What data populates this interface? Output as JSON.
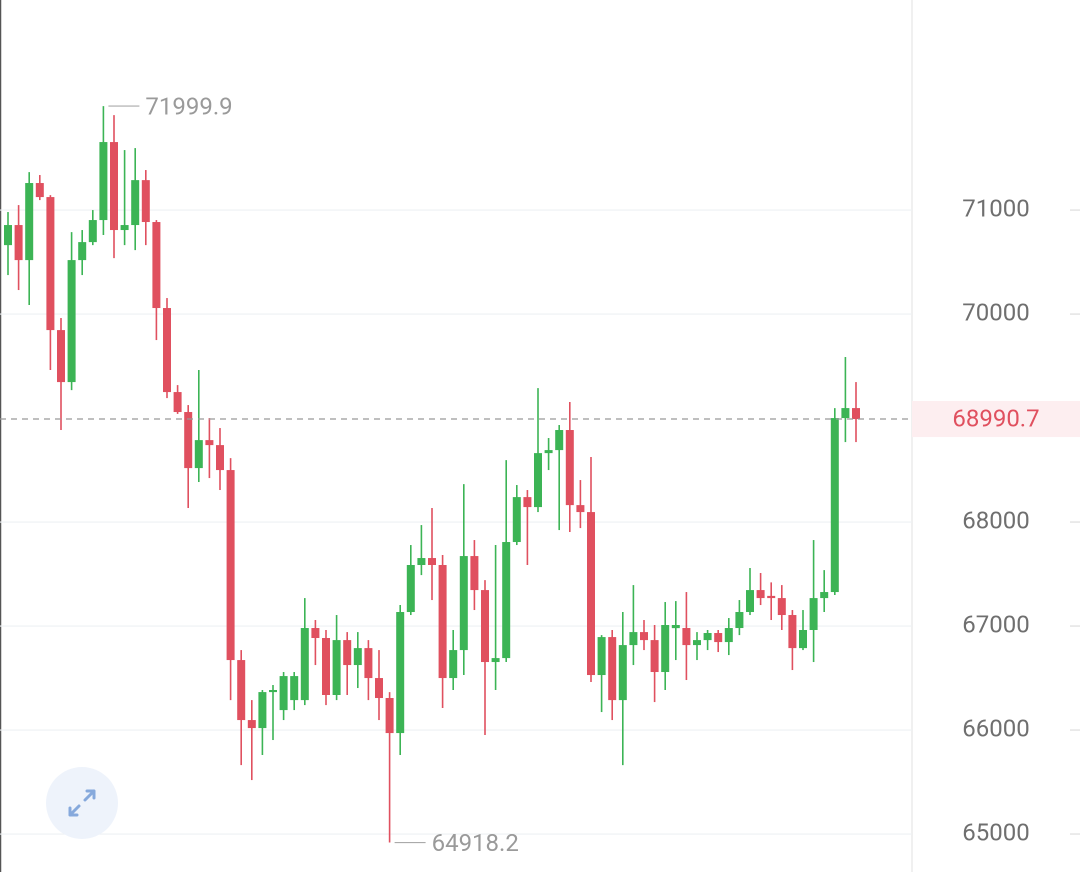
{
  "chart_data": {
    "type": "candlestick",
    "ylim": [
      64635,
      73020
    ],
    "yticks": [
      65000,
      66000,
      67000,
      68000,
      70000,
      71000
    ],
    "grid": true,
    "up_color": "#3cb455",
    "down_color": "#e0505f",
    "open": [
      70663,
      70856,
      70519,
      71260,
      71125,
      69846,
      69346,
      70519,
      70692,
      70904,
      71654,
      70808,
      70856,
      71288,
      70885,
      70058,
      69250,
      69058,
      68519,
      68788,
      68740,
      68500,
      66673,
      66096,
      66019,
      66365,
      66192,
      66288,
      66288,
      66981,
      66885,
      66337,
      66865,
      66625,
      66788,
      66500,
      66308,
      65971,
      67135,
      67587,
      67654,
      67587,
      66500,
      66769,
      67673,
      67346,
      66654,
      66692,
      67808,
      68240,
      68144,
      68663,
      68692,
      68885,
      68163,
      68096,
      66529,
      66894,
      66288,
      66817,
      66942,
      66865,
      66558,
      66980,
      66981,
      66817,
      66865,
      66933,
      66846,
      66981,
      67135,
      67346,
      67290,
      67269,
      67106,
      66788,
      66962,
      67269,
      67327,
      69000,
      69096
    ],
    "high": [
      70981,
      71048,
      71365,
      71337,
      71144,
      69962,
      70788,
      70808,
      71000,
      71999.9,
      71913,
      71577,
      71596,
      71385,
      70904,
      70154,
      69317,
      69125,
      69462,
      69000,
      68904,
      68615,
      66769,
      66288,
      66385,
      66433,
      66558,
      66558,
      67269,
      67058,
      66962,
      67106,
      66942,
      66942,
      66865,
      66769,
      66365,
      67202,
      67779,
      67971,
      68135,
      67683,
      66962,
      68365,
      67827,
      67442,
      67779,
      68596,
      68356,
      68308,
      69288,
      68808,
      68933,
      69154,
      68404,
      68625,
      66913,
      66962,
      67135,
      67394,
      67058,
      67010,
      67231,
      67240,
      67327,
      66942,
      66962,
      66962,
      67077,
      67250,
      67558,
      67510,
      67420,
      67394,
      67154,
      67154,
      67827,
      67538,
      69096,
      69587,
      69346
    ],
    "low": [
      70375,
      70231,
      70087,
      71096,
      69462,
      68885,
      69269,
      70375,
      70663,
      70760,
      70538,
      70663,
      70615,
      70663,
      69750,
      69192,
      69040,
      68135,
      68385,
      68423,
      68308,
      66288,
      65663,
      65519,
      65760,
      65904,
      66096,
      66192,
      66240,
      66625,
      66240,
      66288,
      66337,
      66404,
      66288,
      66096,
      64918.2,
      65760,
      67106,
      67490,
      67250,
      66212,
      66385,
      66529,
      67154,
      65952,
      66385,
      66654,
      67779,
      67587,
      68096,
      68500,
      67923,
      67904,
      67942,
      66462,
      66173,
      66096,
      65663,
      66625,
      66769,
      66269,
      66385,
      66673,
      66481,
      66673,
      66769,
      66750,
      66721,
      66913,
      67106,
      67202,
      67058,
      66962,
      66577,
      66769,
      66654,
      67135,
      67298,
      68769,
      68769
    ],
    "close": [
      70856,
      70519,
      71260,
      71125,
      69846,
      69346,
      70519,
      70692,
      70904,
      71654,
      70808,
      70856,
      71288,
      70885,
      70058,
      69250,
      69058,
      68519,
      68788,
      68740,
      68500,
      66673,
      66096,
      66019,
      66365,
      66385,
      66519,
      66519,
      66981,
      66885,
      66337,
      66865,
      66625,
      66788,
      66500,
      66308,
      65971,
      67135,
      67587,
      67654,
      67587,
      66500,
      66769,
      67673,
      67346,
      66654,
      66692,
      67808,
      68240,
      68144,
      68663,
      68692,
      68885,
      68163,
      68096,
      66529,
      66894,
      66288,
      66817,
      66942,
      66865,
      66558,
      67010,
      67010,
      66817,
      66865,
      66933,
      66846,
      66981,
      67135,
      67346,
      67269,
      67269,
      67106,
      66788,
      66962,
      67269,
      67327,
      69000,
      69096,
      68990.7
    ]
  }
}
